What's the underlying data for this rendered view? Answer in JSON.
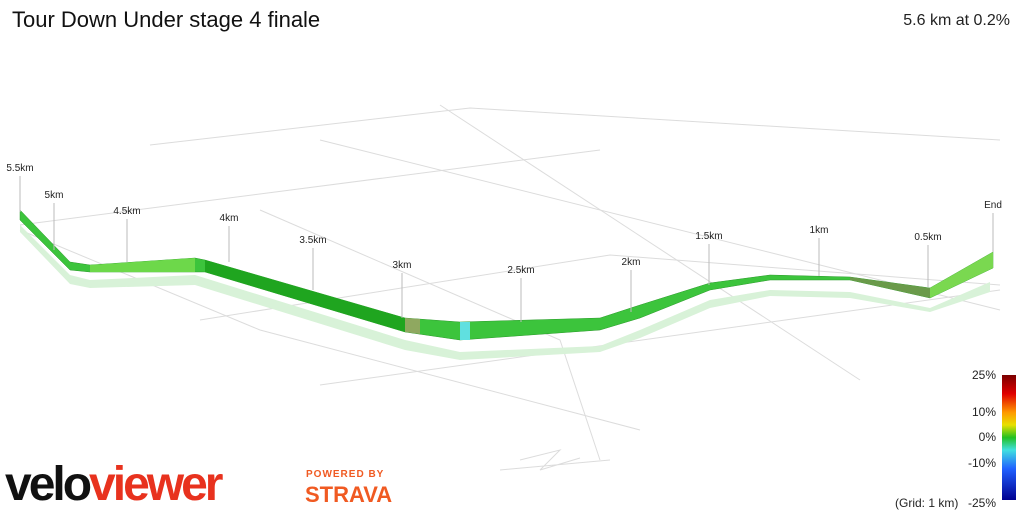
{
  "header": {
    "title": "Tour Down Under stage 4 finale",
    "summary": "5.6 km at 0.2%"
  },
  "markers": [
    "5.5km",
    "5km",
    "4.5km",
    "4km",
    "3.5km",
    "3km",
    "2.5km",
    "2km",
    "1.5km",
    "1km",
    "0.5km",
    "End"
  ],
  "legend": {
    "labels": [
      "25%",
      "10%",
      "0%",
      "-10%",
      "-25%"
    ],
    "grid_note": "(Grid: 1 km)"
  },
  "branding": {
    "logo_first": "velo",
    "logo_second": "viewer",
    "powered": "POWERED BY",
    "strava": "STRAVA"
  }
}
